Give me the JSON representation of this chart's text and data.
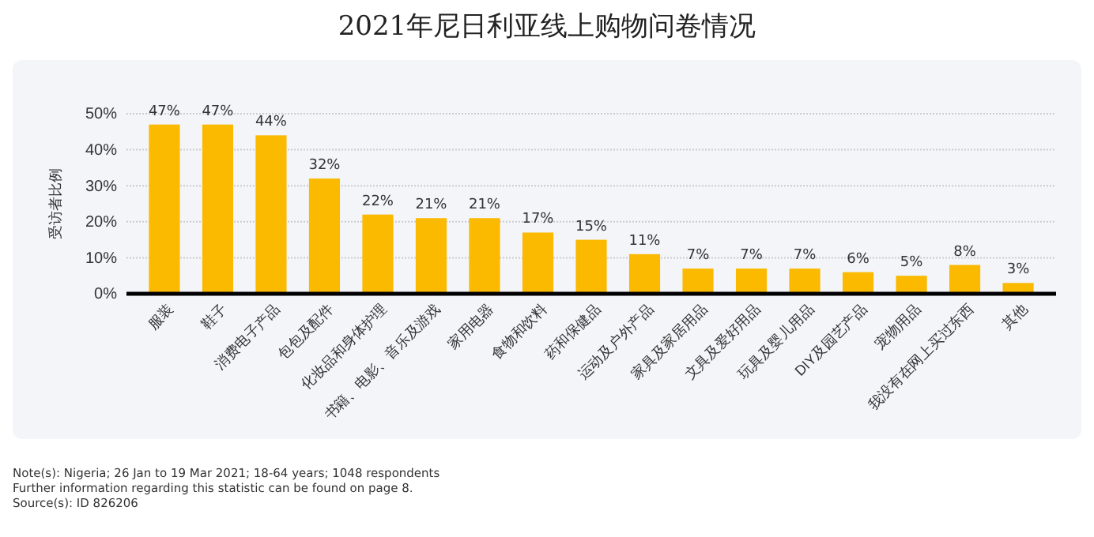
{
  "chart_data": {
    "type": "bar",
    "title": "2021年尼日利亚线上购物问卷情况",
    "ylabel": "受访者比例",
    "categories": [
      "服装",
      "鞋子",
      "消费电子产品",
      "包包及配件",
      "化妆品和身体护理",
      "书籍、电影、音乐及游戏",
      "家用电器",
      "食物和饮料",
      "药和保健品",
      "运动及户外产品",
      "家具及家居用品",
      "文具及爱好用品",
      "玩具及婴儿用品",
      "DIY及园艺产品",
      "宠物用品",
      "我没有在网上买过东西",
      "其他"
    ],
    "values": [
      47,
      47,
      44,
      32,
      22,
      21,
      21,
      17,
      15,
      11,
      7,
      7,
      7,
      6,
      5,
      8,
      3
    ],
    "value_labels": [
      "47%",
      "47%",
      "44%",
      "32%",
      "22%",
      "21%",
      "21%",
      "17%",
      "15%",
      "11%",
      "7%",
      "7%",
      "7%",
      "6%",
      "5%",
      "8%",
      "3%"
    ],
    "color": "#fbb900",
    "ylim": [
      0,
      50
    ],
    "yticks": [
      {
        "value": 0,
        "label": "0%"
      },
      {
        "value": 10,
        "label": "10%"
      },
      {
        "value": 20,
        "label": "20%"
      },
      {
        "value": 30,
        "label": "30%"
      },
      {
        "value": 40,
        "label": "40%"
      },
      {
        "value": 50,
        "label": "50%"
      }
    ],
    "grid": "y",
    "annotations": [
      "Note(s): Nigeria; 26 Jan to 19 Mar 2021; 18-64 years; 1048 respondents",
      "Further information regarding this statistic can be found on page 8.",
      "Source(s): ID 826206"
    ]
  }
}
